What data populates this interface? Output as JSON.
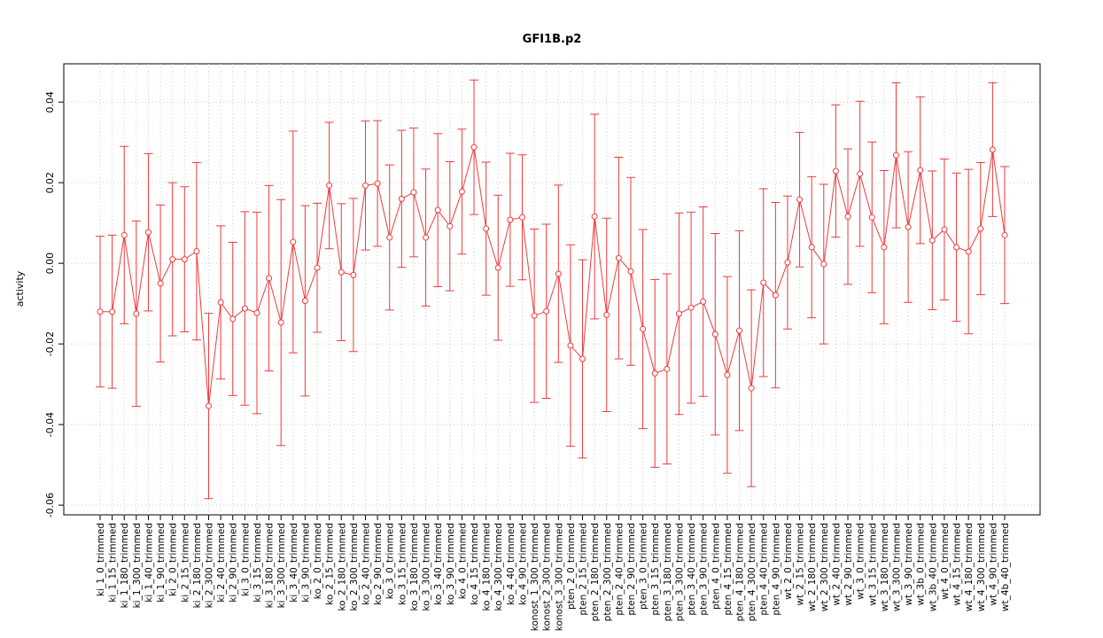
{
  "chart_data": {
    "type": "errorbar-line",
    "title": "GFI1B.p2",
    "y_label": "activity",
    "color": "#f03a3a",
    "grid": true,
    "categories": [
      "ki_1_0_trimmed",
      "ki_1_15_trimmed",
      "ki_1_180_trimmed",
      "ki_1_300_trimmed",
      "ki_1_40_trimmed",
      "ki_1_90_trimmed",
      "ki_2_0_trimmed",
      "ki_2_15_trimmed",
      "ki_2_180_trimmed",
      "ki_2_300_trimmed",
      "ki_2_40_trimmed",
      "ki_2_90_trimmed",
      "ki_3_0_trimmed",
      "ki_3_15_trimmed",
      "ki_3_180_trimmed",
      "ki_3_300_trimmed",
      "ki_3_40_trimmed",
      "ki_3_90_trimmed",
      "ko_2_0_trimmed",
      "ko_2_15_trimmed",
      "ko_2_180_trimmed",
      "ko_2_300_trimmed",
      "ko_2_40_trimmed",
      "ko_2_90_trimmed",
      "ko_3_0_trimmed",
      "ko_3_15_trimmed",
      "ko_3_180_trimmed",
      "ko_3_300_trimmed",
      "ko_3_40_trimmed",
      "ko_3_90_trimmed",
      "ko_4_0_trimmed",
      "ko_4_15_trimmed",
      "ko_4_180_trimmed",
      "ko_4_300_trimmed",
      "ko_4_40_trimmed",
      "ko_4_90_trimmed",
      "konost_1_300_trimmed",
      "konost_2_300_trimmed",
      "konost_3_300_trimmed",
      "pten_2_0_trimmed",
      "pten_2_15_trimmed",
      "pten_2_180_trimmed",
      "pten_2_300_trimmed",
      "pten_2_40_trimmed",
      "pten_2_90_trimmed",
      "pten_3_0_trimmed",
      "pten_3_15_trimmed",
      "pten_3_180_trimmed",
      "pten_3_300_trimmed",
      "pten_3_40_trimmed",
      "pten_3_90_trimmed",
      "pten_4_0_trimmed",
      "pten_4_15_trimmed",
      "pten_4_180_trimmed",
      "pten_4_300_trimmed",
      "pten_4_40_trimmed",
      "pten_4_90_trimmed",
      "wt_2_0_trimmed",
      "wt_2_15_trimmed",
      "wt_2_180_trimmed",
      "wt_2_300_trimmed",
      "wt_2_40_trimmed",
      "wt_2_90_trimmed",
      "wt_3_0_trimmed",
      "wt_3_15_trimmed",
      "wt_3_180_trimmed",
      "wt_3_300_trimmed",
      "wt_3_90_trimmed",
      "wt_3b_0_trimmed",
      "wt_3b_40_trimmed",
      "wt_4_0_trimmed",
      "wt_4_15_trimmed",
      "wt_4_180_trimmed",
      "wt_4_300_trimmed",
      "wt_4_90_trimmed",
      "wt_4b_40_trimmed"
    ],
    "values": [
      -0.012,
      -0.012,
      0.007,
      -0.0125,
      0.0077,
      -0.005,
      0.001,
      0.001,
      0.003,
      -0.0354,
      -0.0097,
      -0.0138,
      -0.0112,
      -0.0123,
      -0.0037,
      -0.0147,
      0.0053,
      -0.0093,
      -0.0011,
      0.0193,
      -0.0022,
      -0.0029,
      0.0193,
      0.0198,
      0.0064,
      0.016,
      0.0176,
      0.0064,
      0.0132,
      0.0092,
      0.0178,
      0.0288,
      0.0086,
      -0.0011,
      0.0108,
      0.0114,
      -0.013,
      -0.0119,
      -0.0026,
      -0.0204,
      -0.0237,
      0.0116,
      -0.0128,
      0.0013,
      -0.002,
      -0.0163,
      -0.0273,
      -0.0262,
      -0.0125,
      -0.011,
      -0.0095,
      -0.0176,
      -0.0277,
      -0.0167,
      -0.031,
      -0.0048,
      -0.0079,
      0.0002,
      0.0158,
      0.004,
      -0.0002,
      0.0229,
      0.0116,
      0.0222,
      0.0114,
      0.004,
      0.0268,
      0.009,
      0.0231,
      0.0057,
      0.0084,
      0.004,
      0.0029,
      0.0086,
      0.0282,
      0.007
    ],
    "errors": [
      0.0187,
      0.019,
      0.022,
      0.023,
      0.0195,
      0.0195,
      0.019,
      0.018,
      0.022,
      0.023,
      0.019,
      0.019,
      0.024,
      0.025,
      0.023,
      0.0305,
      0.0275,
      0.0236,
      0.016,
      0.0157,
      0.017,
      0.019,
      0.016,
      0.0156,
      0.018,
      0.017,
      0.016,
      0.017,
      0.019,
      0.016,
      0.0155,
      0.0167,
      0.0165,
      0.018,
      0.0165,
      0.0155,
      0.0215,
      0.0216,
      0.022,
      0.025,
      0.0246,
      0.0254,
      0.024,
      0.025,
      0.0233,
      0.0247,
      0.0233,
      0.0236,
      0.025,
      0.0237,
      0.0235,
      0.025,
      0.0244,
      0.0248,
      0.0244,
      0.0233,
      0.023,
      0.0165,
      0.0167,
      0.0175,
      0.0198,
      0.0164,
      0.0168,
      0.018,
      0.0187,
      0.019,
      0.018,
      0.0187,
      0.0182,
      0.0172,
      0.0175,
      0.0184,
      0.0204,
      0.0164,
      0.0166,
      0.017
    ],
    "ylim": [
      -0.0624,
      0.0495
    ],
    "yticks": [
      -0.06,
      -0.04,
      -0.02,
      {
        "value": 0,
        "label": "0.00"
      },
      0.02,
      0.04
    ]
  }
}
